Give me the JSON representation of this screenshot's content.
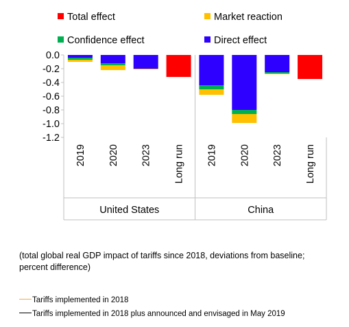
{
  "chart_data": {
    "type": "bar",
    "stacked": true,
    "categories": [
      "2019",
      "2020",
      "2023",
      "Long run",
      "2019",
      "2020",
      "2023",
      "Long run"
    ],
    "groups": [
      {
        "label": "United States",
        "categories": [
          "2019",
          "2020",
          "2023",
          "Long run"
        ]
      },
      {
        "label": "China",
        "categories": [
          "2019",
          "2020",
          "2023",
          "Long run"
        ]
      }
    ],
    "series": [
      {
        "name": "Total effect",
        "color": "#ff0000",
        "values": [
          0,
          0,
          0,
          -0.32,
          0,
          0,
          0,
          -0.35
        ]
      },
      {
        "name": "Market reaction",
        "color": "#ffc000",
        "values": [
          -0.03,
          -0.07,
          -0.01,
          0,
          -0.08,
          -0.13,
          -0.01,
          0
        ]
      },
      {
        "name": "Confidence effect",
        "color": "#00b050",
        "values": [
          -0.03,
          -0.03,
          0,
          0,
          -0.06,
          -0.06,
          -0.02,
          0
        ]
      },
      {
        "name": "Direct effect",
        "color": "#2e00ff",
        "values": [
          -0.04,
          -0.12,
          -0.2,
          0,
          -0.44,
          -0.8,
          -0.25,
          0
        ]
      }
    ],
    "ylim": [
      -1.2,
      0.0
    ],
    "yticks": [
      "0.0",
      "-0.2",
      "-0.4",
      "-0.6",
      "-0.8",
      "-1.0",
      "-1.2"
    ],
    "ytick_values": [
      0.0,
      -0.2,
      -0.4,
      -0.6,
      -0.8,
      -1.0,
      -1.2
    ],
    "legend_position": "top",
    "title": "",
    "xlabel": "",
    "ylabel": ""
  },
  "caption": "(total global real GDP impact of tariffs since 2018, deviations from baseline; percent difference)",
  "legend_notes": [
    {
      "label": "Tariffs implemented in 2018",
      "color": "#f7a84a"
    },
    {
      "label": "Tariffs implemented in 2018 plus announced and envisaged in May 2019",
      "color": "#000000"
    }
  ]
}
